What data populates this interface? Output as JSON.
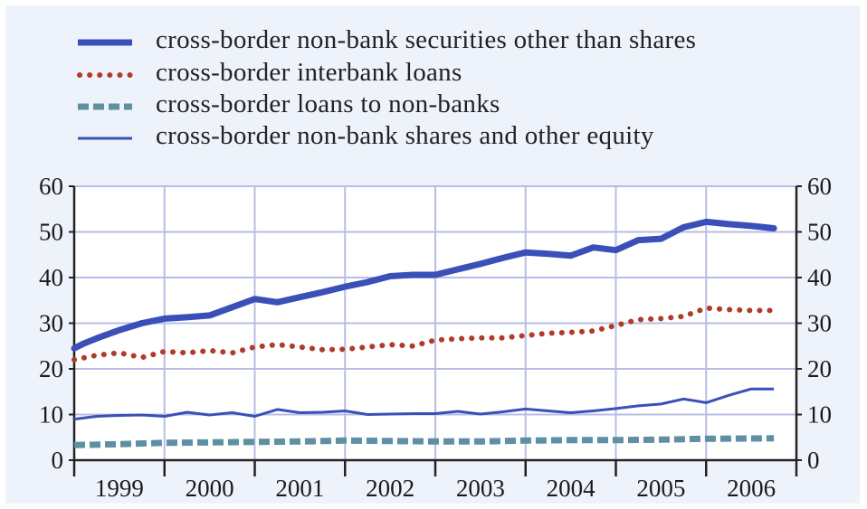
{
  "chart_data": {
    "type": "line",
    "title": "",
    "xlabel": "",
    "ylabel": "",
    "ylim": [
      0,
      60
    ],
    "yticks": [
      0,
      10,
      20,
      30,
      40,
      50,
      60
    ],
    "year_labels": [
      "1999",
      "2000",
      "2001",
      "2002",
      "2003",
      "2004",
      "2005",
      "2006"
    ],
    "x_range": [
      1999.0,
      2007.0
    ],
    "grid": true,
    "legend_position": "top",
    "series": [
      {
        "name": "cross-border non-bank securities other than shares",
        "color": "#3a4fb8",
        "style": "thick-solid",
        "x": [
          1999.0,
          1999.1,
          1999.25,
          1999.5,
          1999.75,
          2000.0,
          2000.25,
          2000.5,
          2000.75,
          2001.0,
          2001.25,
          2001.5,
          2001.75,
          2002.0,
          2002.25,
          2002.5,
          2002.75,
          2003.0,
          2003.25,
          2003.5,
          2003.75,
          2004.0,
          2004.25,
          2004.5,
          2004.75,
          2005.0,
          2005.25,
          2005.5,
          2005.75,
          2006.0,
          2006.25,
          2006.5,
          2006.75
        ],
        "y": [
          24.5,
          25.5,
          26.7,
          28.5,
          30.0,
          31.0,
          31.3,
          31.7,
          33.5,
          35.3,
          34.6,
          35.7,
          36.8,
          38.0,
          39.0,
          40.3,
          40.6,
          40.6,
          41.8,
          43.0,
          44.3,
          45.5,
          45.2,
          44.8,
          46.6,
          46.0,
          48.2,
          48.5,
          51.0,
          52.2,
          51.7,
          51.3,
          50.8
        ]
      },
      {
        "name": "cross-border interbank loans",
        "color": "#b23a2a",
        "style": "dotted",
        "x": [
          1999.0,
          1999.25,
          1999.5,
          1999.75,
          2000.0,
          2000.25,
          2000.5,
          2000.75,
          2001.0,
          2001.25,
          2001.5,
          2001.75,
          2002.0,
          2002.25,
          2002.5,
          2002.75,
          2003.0,
          2003.25,
          2003.5,
          2003.75,
          2004.0,
          2004.25,
          2004.5,
          2004.75,
          2005.0,
          2005.25,
          2005.5,
          2005.75,
          2006.0,
          2006.25,
          2006.5,
          2006.75
        ],
        "y": [
          22.0,
          23.0,
          23.5,
          22.5,
          23.8,
          23.5,
          24.0,
          23.5,
          24.8,
          25.3,
          24.8,
          24.2,
          24.3,
          24.8,
          25.3,
          25.0,
          26.3,
          26.6,
          26.8,
          26.8,
          27.3,
          27.8,
          28.0,
          28.3,
          29.5,
          30.8,
          31.0,
          31.5,
          33.3,
          33.0,
          32.8,
          32.8
        ]
      },
      {
        "name": "cross-border loans to non-banks",
        "color": "#5f8fa3",
        "style": "dashed",
        "x": [
          1999.0,
          1999.5,
          2000.0,
          2000.5,
          2001.0,
          2001.5,
          2002.0,
          2002.5,
          2003.0,
          2003.5,
          2004.0,
          2004.5,
          2005.0,
          2005.5,
          2006.0,
          2006.75
        ],
        "y": [
          3.3,
          3.5,
          3.8,
          3.9,
          4.0,
          4.1,
          4.3,
          4.2,
          4.1,
          4.1,
          4.3,
          4.4,
          4.4,
          4.5,
          4.7,
          4.8
        ]
      },
      {
        "name": "cross-border non-bank shares and other equity",
        "color": "#3a4fb8",
        "style": "thin-solid",
        "x": [
          1999.0,
          1999.25,
          1999.5,
          1999.75,
          2000.0,
          2000.25,
          2000.5,
          2000.75,
          2001.0,
          2001.25,
          2001.5,
          2001.75,
          2002.0,
          2002.25,
          2002.5,
          2002.75,
          2003.0,
          2003.25,
          2003.5,
          2003.75,
          2004.0,
          2004.25,
          2004.5,
          2004.75,
          2005.0,
          2005.25,
          2005.5,
          2005.75,
          2006.0,
          2006.25,
          2006.5,
          2006.75
        ],
        "y": [
          9.0,
          9.6,
          9.8,
          9.9,
          9.6,
          10.5,
          9.9,
          10.4,
          9.6,
          11.1,
          10.4,
          10.5,
          10.8,
          10.0,
          10.1,
          10.2,
          10.2,
          10.7,
          10.1,
          10.6,
          11.2,
          10.8,
          10.4,
          10.8,
          11.3,
          11.9,
          12.3,
          13.4,
          12.6,
          14.2,
          15.6,
          15.6
        ]
      }
    ]
  }
}
